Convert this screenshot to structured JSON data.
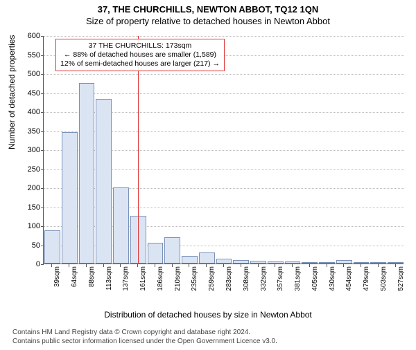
{
  "title_line1": "37, THE CHURCHILLS, NEWTON ABBOT, TQ12 1QN",
  "title_line2": "Size of property relative to detached houses in Newton Abbot",
  "ylabel": "Number of detached properties",
  "xlabel": "Distribution of detached houses by size in Newton Abbot",
  "footer_line1": "Contains HM Land Registry data © Crown copyright and database right 2024.",
  "footer_line2": "Contains public sector information licensed under the Open Government Licence v3.0.",
  "chart": {
    "type": "histogram",
    "background_color": "#ffffff",
    "bar_fill": "#dbe4f3",
    "bar_border": "#7a92b8",
    "grid_color": "#bbbbbb",
    "axis_color": "#555555",
    "ref_line_color": "#d33",
    "tick_fontsize": 11,
    "xtick_fontsize": 10,
    "label_fontsize": 12,
    "title_fontsize": 13,
    "ylim": [
      0,
      600
    ],
    "yticks": [
      0,
      50,
      100,
      150,
      200,
      250,
      300,
      350,
      400,
      450,
      500,
      550,
      600
    ],
    "xticks": [
      "39sqm",
      "64sqm",
      "88sqm",
      "113sqm",
      "137sqm",
      "161sqm",
      "186sqm",
      "210sqm",
      "235sqm",
      "259sqm",
      "283sqm",
      "308sqm",
      "332sqm",
      "357sqm",
      "381sqm",
      "405sqm",
      "430sqm",
      "454sqm",
      "479sqm",
      "503sqm",
      "527sqm"
    ],
    "values": [
      88,
      345,
      475,
      432,
      200,
      125,
      55,
      70,
      20,
      30,
      12,
      10,
      8,
      6,
      5,
      4,
      3,
      10,
      4,
      3,
      2
    ],
    "bar_width_ratio": 0.92,
    "annotation": {
      "line1": "37 THE CHURCHILLS: 173sqm",
      "line2": "← 88% of detached houses are smaller (1,589)",
      "line3": "12% of semi-detached houses are larger (217) →",
      "ref_index": 5.5
    }
  }
}
